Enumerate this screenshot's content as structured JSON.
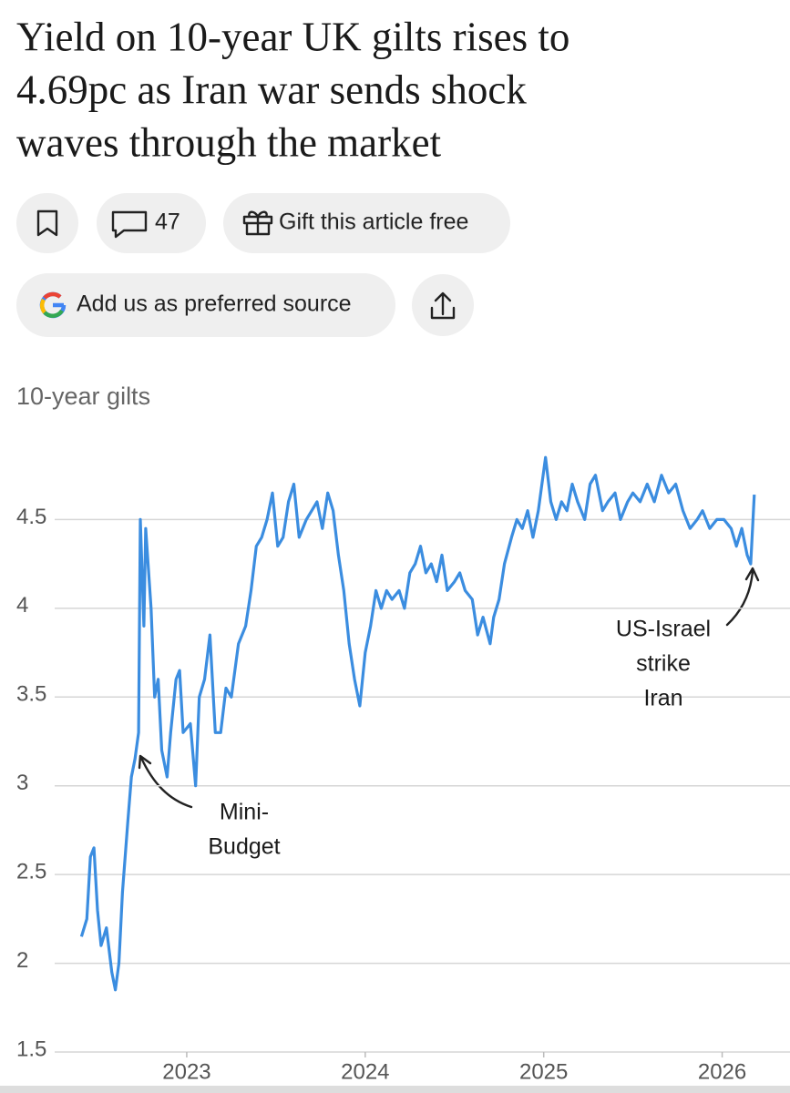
{
  "header": {
    "title_lines": [
      "Yield on 10-year UK gilts rises to",
      "4.69pc as Iran war sends shock",
      "waves through the market"
    ]
  },
  "actions": {
    "comments": "47",
    "gift": "Gift this article free",
    "preferred_source": "Add us as preferred source"
  },
  "chart_data": {
    "type": "line",
    "title": "10-year gilts",
    "color": "#3b8de0",
    "grid": true,
    "xlim": [
      2022.26,
      2026.38
    ],
    "xticks": [
      2023,
      2024,
      2025,
      2026
    ],
    "ylim": [
      1.5,
      5
    ],
    "yticks": [
      1.5,
      2,
      2.5,
      3,
      3.5,
      4,
      4.5
    ],
    "annotations": [
      [
        "Mini-",
        "Budget"
      ],
      [
        "US-Israel",
        "strike",
        "Iran"
      ]
    ],
    "x": [
      2022.41,
      2022.44,
      2022.46,
      2022.48,
      2022.5,
      2022.52,
      2022.55,
      2022.58,
      2022.6,
      2022.62,
      2022.64,
      2022.67,
      2022.69,
      2022.71,
      2022.73,
      2022.74,
      2022.76,
      2022.77,
      2022.8,
      2022.82,
      2022.84,
      2022.86,
      2022.89,
      2022.91,
      2022.94,
      2022.96,
      2022.98,
      2023.02,
      2023.05,
      2023.07,
      2023.1,
      2023.13,
      2023.16,
      2023.19,
      2023.22,
      2023.25,
      2023.29,
      2023.33,
      2023.36,
      2023.39,
      2023.42,
      2023.45,
      2023.48,
      2023.51,
      2023.54,
      2023.57,
      2023.6,
      2023.63,
      2023.67,
      2023.7,
      2023.73,
      2023.76,
      2023.79,
      2023.82,
      2023.85,
      2023.88,
      2023.91,
      2023.94,
      2023.97,
      2024.0,
      2024.03,
      2024.06,
      2024.09,
      2024.12,
      2024.15,
      2024.19,
      2024.22,
      2024.25,
      2024.28,
      2024.31,
      2024.34,
      2024.37,
      2024.4,
      2024.43,
      2024.46,
      2024.5,
      2024.53,
      2024.56,
      2024.6,
      2024.63,
      2024.66,
      2024.7,
      2024.72,
      2024.75,
      2024.78,
      2024.82,
      2024.85,
      2024.88,
      2024.91,
      2024.94,
      2024.97,
      2025.01,
      2025.04,
      2025.07,
      2025.1,
      2025.13,
      2025.16,
      2025.19,
      2025.23,
      2025.26,
      2025.29,
      2025.33,
      2025.36,
      2025.4,
      2025.43,
      2025.47,
      2025.5,
      2025.54,
      2025.58,
      2025.62,
      2025.66,
      2025.7,
      2025.74,
      2025.78,
      2025.82,
      2025.86,
      2025.89,
      2025.93,
      2025.97,
      2026.01,
      2026.05,
      2026.08,
      2026.11,
      2026.14,
      2026.16,
      2026.18
    ],
    "values": [
      2.15,
      2.25,
      2.6,
      2.65,
      2.3,
      2.1,
      2.2,
      1.95,
      1.85,
      2.0,
      2.4,
      2.8,
      3.05,
      3.15,
      3.3,
      4.5,
      3.9,
      4.45,
      4.0,
      3.5,
      3.6,
      3.2,
      3.05,
      3.3,
      3.6,
      3.65,
      3.3,
      3.35,
      3.0,
      3.5,
      3.6,
      3.85,
      3.3,
      3.3,
      3.55,
      3.5,
      3.8,
      3.9,
      4.1,
      4.35,
      4.4,
      4.5,
      4.65,
      4.35,
      4.4,
      4.6,
      4.7,
      4.4,
      4.5,
      4.55,
      4.6,
      4.45,
      4.65,
      4.55,
      4.3,
      4.1,
      3.8,
      3.6,
      3.45,
      3.75,
      3.9,
      4.1,
      4.0,
      4.1,
      4.05,
      4.1,
      4.0,
      4.2,
      4.25,
      4.35,
      4.2,
      4.25,
      4.15,
      4.3,
      4.1,
      4.15,
      4.2,
      4.1,
      4.05,
      3.85,
      3.95,
      3.8,
      3.95,
      4.05,
      4.25,
      4.4,
      4.5,
      4.45,
      4.55,
      4.4,
      4.55,
      4.85,
      4.6,
      4.5,
      4.6,
      4.55,
      4.7,
      4.6,
      4.5,
      4.7,
      4.75,
      4.55,
      4.6,
      4.65,
      4.5,
      4.6,
      4.65,
      4.6,
      4.7,
      4.6,
      4.75,
      4.65,
      4.7,
      4.55,
      4.45,
      4.5,
      4.55,
      4.45,
      4.5,
      4.5,
      4.45,
      4.35,
      4.45,
      4.3,
      4.25,
      4.64
    ]
  }
}
